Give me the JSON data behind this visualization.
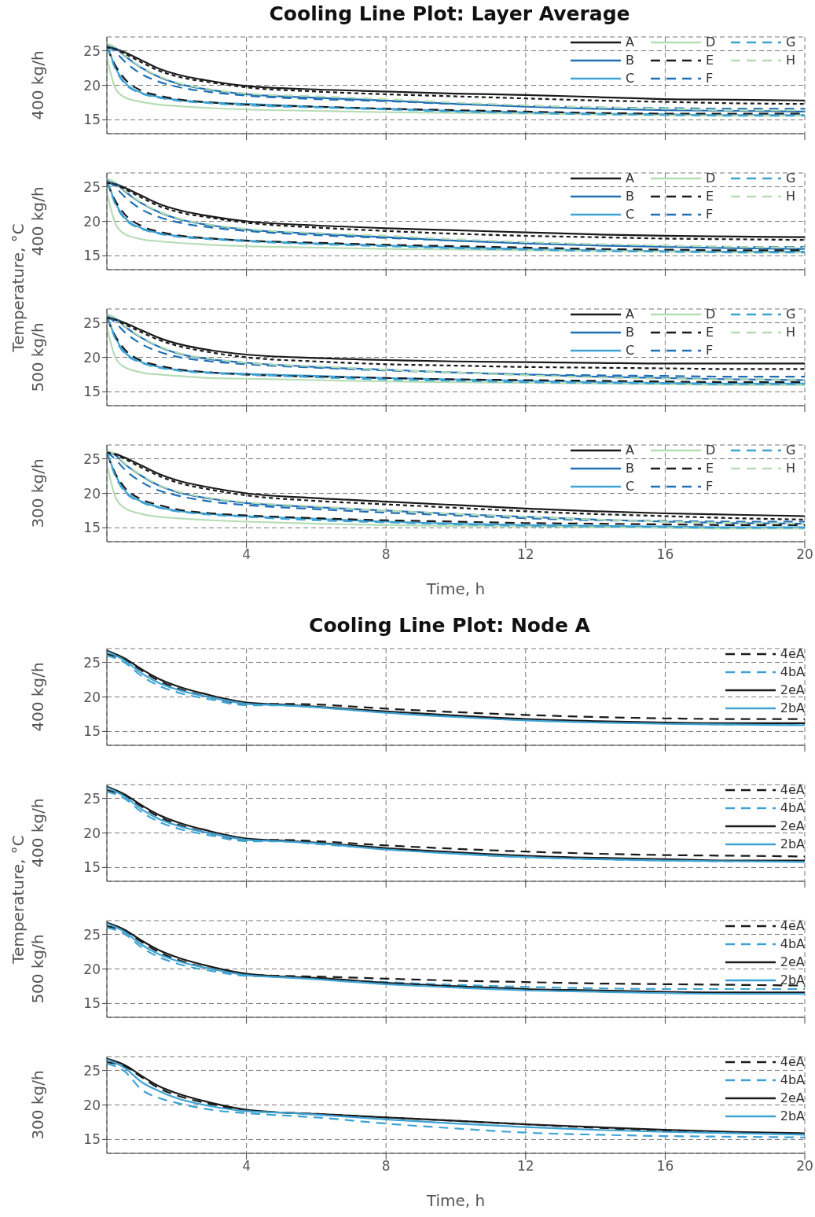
{
  "chart_data": [
    {
      "type": "line",
      "title": "Cooling Line Plot: Layer Average",
      "ylabel": "400 kg/h",
      "annotations": [
        "Temperature, °C"
      ],
      "legend": "top right",
      "grid": true,
      "tick_labels": "y",
      "xlim": [
        0,
        20
      ],
      "xticks": [
        4,
        8,
        12,
        16,
        20
      ],
      "ylim": [
        13,
        27
      ],
      "yticks": [
        15,
        20,
        25
      ],
      "x": [
        0,
        0.25,
        0.5,
        1,
        1.5,
        2,
        3,
        4,
        6,
        8,
        10,
        12,
        14,
        16,
        18,
        20
      ],
      "series": [
        {
          "name": "A",
          "color": "#1a1a1a",
          "line_style": "solid",
          "values": [
            25.5,
            25.3,
            24.8,
            23.6,
            22.4,
            21.6,
            20.6,
            19.9,
            19.4,
            19.1,
            18.8,
            18.6,
            18.3,
            18.0,
            17.9,
            17.8
          ]
        },
        {
          "name": "B",
          "color": "#1f6fb4",
          "line_style": "solid",
          "values": [
            26.0,
            25.4,
            24.3,
            22.5,
            21.2,
            20.3,
            19.3,
            18.7,
            18.2,
            17.8,
            17.3,
            16.9,
            16.6,
            16.4,
            16.3,
            16.2
          ]
        },
        {
          "name": "C",
          "color": "#3ea3d3",
          "line_style": "solid",
          "values": [
            26.0,
            22.5,
            20.5,
            18.9,
            18.3,
            17.9,
            17.5,
            17.3,
            16.9,
            16.6,
            16.3,
            16.1,
            15.9,
            15.8,
            15.7,
            15.7
          ]
        },
        {
          "name": "D",
          "color": "#b6dcb6",
          "line_style": "solid",
          "values": [
            24.0,
            19.5,
            18.3,
            17.6,
            17.2,
            17.0,
            16.7,
            16.5,
            16.3,
            16.1,
            16.0,
            15.9,
            15.8,
            15.7,
            15.6,
            15.6
          ]
        },
        {
          "name": "E",
          "color": "#1a1a1a",
          "line_style": "dashed",
          "values": [
            25.5,
            22.8,
            21.0,
            19.2,
            18.5,
            18.0,
            17.5,
            17.2,
            16.9,
            16.6,
            16.4,
            16.2,
            16.0,
            15.9,
            15.9,
            15.9
          ]
        },
        {
          "name": "F",
          "color": "#1f6fb4",
          "line_style": "dashed",
          "values": [
            25.8,
            24.8,
            23.5,
            21.6,
            20.5,
            19.8,
            19.0,
            18.5,
            18.0,
            17.7,
            17.3,
            17.0,
            16.8,
            16.7,
            16.6,
            16.6
          ]
        },
        {
          "name": "G",
          "color": "#3ea3d3",
          "line_style": "dashed",
          "values": [
            25.8,
            22.3,
            20.3,
            18.8,
            18.2,
            17.8,
            17.4,
            17.1,
            16.8,
            16.5,
            16.2,
            16.0,
            15.8,
            15.7,
            15.6,
            15.6
          ]
        },
        {
          "name": "H",
          "color": "#b6dcb6",
          "line_style": "dashed",
          "values": [
            26.0,
            25.5,
            24.4,
            22.6,
            21.3,
            20.4,
            19.4,
            18.8,
            18.4,
            18.0,
            17.5,
            17.1,
            16.8,
            16.6,
            16.4,
            16.4
          ]
        },
        {
          "color": "#1a1a1a",
          "line_style": "dotted",
          "values": [
            25.5,
            25.2,
            24.6,
            23.3,
            22.1,
            21.3,
            20.4,
            19.7,
            19.1,
            18.7,
            18.4,
            18.1,
            17.8,
            17.6,
            17.4,
            17.3
          ]
        }
      ]
    },
    {
      "type": "line",
      "ylabel": "400 kg/h",
      "legend": "top right",
      "grid": true,
      "tick_labels": "y",
      "xlim": [
        0,
        20
      ],
      "xticks": [
        4,
        8,
        12,
        16,
        20
      ],
      "ylim": [
        13,
        27
      ],
      "yticks": [
        15,
        20,
        25
      ],
      "x": [
        0,
        0.25,
        0.5,
        1,
        1.5,
        2,
        3,
        4,
        6,
        8,
        10,
        12,
        14,
        16,
        18,
        20
      ],
      "series": [
        {
          "name": "A",
          "color": "#1a1a1a",
          "line_style": "solid",
          "values": [
            25.6,
            25.4,
            24.9,
            23.7,
            22.5,
            21.7,
            20.7,
            20.0,
            19.4,
            19.0,
            18.7,
            18.4,
            18.1,
            17.9,
            17.8,
            17.7
          ]
        },
        {
          "name": "B",
          "color": "#1f6fb4",
          "line_style": "solid",
          "values": [
            26.1,
            25.5,
            24.4,
            22.6,
            21.3,
            20.4,
            19.4,
            18.8,
            18.2,
            17.7,
            17.2,
            16.8,
            16.5,
            16.3,
            16.1,
            16.0
          ]
        },
        {
          "name": "C",
          "color": "#3ea3d3",
          "line_style": "solid",
          "values": [
            26.1,
            22.6,
            20.6,
            19.0,
            18.3,
            17.9,
            17.5,
            17.2,
            16.8,
            16.5,
            16.2,
            16.0,
            15.8,
            15.7,
            15.6,
            15.6
          ]
        },
        {
          "name": "D",
          "color": "#b6dcb6",
          "line_style": "solid",
          "values": [
            24.2,
            19.6,
            18.2,
            17.4,
            17.1,
            16.9,
            16.6,
            16.4,
            16.2,
            16.0,
            15.9,
            15.8,
            15.7,
            15.6,
            15.5,
            15.5
          ]
        },
        {
          "name": "E",
          "color": "#1a1a1a",
          "line_style": "dashed",
          "values": [
            25.6,
            22.9,
            21.1,
            19.3,
            18.5,
            18.0,
            17.5,
            17.2,
            16.9,
            16.6,
            16.4,
            16.2,
            16.0,
            15.9,
            15.8,
            15.8
          ]
        },
        {
          "name": "F",
          "color": "#1f6fb4",
          "line_style": "dashed",
          "values": [
            25.9,
            24.9,
            23.6,
            21.7,
            20.6,
            19.9,
            19.1,
            18.6,
            18.0,
            17.6,
            17.2,
            16.9,
            16.6,
            16.4,
            16.3,
            16.3
          ]
        },
        {
          "name": "G",
          "color": "#3ea3d3",
          "line_style": "dashed",
          "values": [
            25.9,
            22.4,
            20.4,
            18.9,
            18.2,
            17.8,
            17.4,
            17.1,
            16.7,
            16.4,
            16.1,
            15.9,
            15.7,
            15.6,
            15.5,
            15.5
          ]
        },
        {
          "name": "H",
          "color": "#b6dcb6",
          "line_style": "dashed",
          "values": [
            26.1,
            25.6,
            24.5,
            22.7,
            21.4,
            20.5,
            19.5,
            18.9,
            18.3,
            17.9,
            17.4,
            17.0,
            16.7,
            16.5,
            16.3,
            16.2
          ]
        },
        {
          "color": "#1a1a1a",
          "line_style": "dotted",
          "values": [
            25.6,
            25.3,
            24.7,
            23.4,
            22.2,
            21.4,
            20.5,
            19.8,
            19.1,
            18.6,
            18.2,
            17.9,
            17.7,
            17.5,
            17.4,
            17.3
          ]
        }
      ]
    },
    {
      "type": "line",
      "ylabel": "500 kg/h",
      "legend": "top right",
      "grid": true,
      "tick_labels": "y",
      "xlim": [
        0,
        20
      ],
      "xticks": [
        4,
        8,
        12,
        16,
        20
      ],
      "ylim": [
        13,
        27
      ],
      "yticks": [
        15,
        20,
        25
      ],
      "x": [
        0,
        0.25,
        0.5,
        1,
        1.5,
        2,
        3,
        4,
        6,
        8,
        10,
        12,
        14,
        16,
        18,
        20
      ],
      "series": [
        {
          "name": "A",
          "color": "#1a1a1a",
          "line_style": "solid",
          "values": [
            25.7,
            25.5,
            25.0,
            23.9,
            22.8,
            22.0,
            21.0,
            20.4,
            19.9,
            19.6,
            19.4,
            19.3,
            19.2,
            19.1,
            19.1,
            19.1
          ]
        },
        {
          "name": "B",
          "color": "#1f6fb4",
          "line_style": "solid",
          "values": [
            26.2,
            25.6,
            24.5,
            22.8,
            21.5,
            20.6,
            19.7,
            19.2,
            18.6,
            18.2,
            17.8,
            17.5,
            17.2,
            17.0,
            16.8,
            16.7
          ]
        },
        {
          "name": "C",
          "color": "#3ea3d3",
          "line_style": "solid",
          "values": [
            26.1,
            22.8,
            20.8,
            19.3,
            18.6,
            18.2,
            17.8,
            17.6,
            17.3,
            17.0,
            16.8,
            16.6,
            16.4,
            16.3,
            16.2,
            16.2
          ]
        },
        {
          "name": "D",
          "color": "#b6dcb6",
          "line_style": "solid",
          "values": [
            24.4,
            19.9,
            18.6,
            17.8,
            17.5,
            17.3,
            17.0,
            16.9,
            16.7,
            16.5,
            16.4,
            16.3,
            16.2,
            16.1,
            16.0,
            16.0
          ]
        },
        {
          "name": "E",
          "color": "#1a1a1a",
          "line_style": "dashed",
          "values": [
            25.7,
            23.0,
            21.2,
            19.5,
            18.8,
            18.3,
            17.8,
            17.5,
            17.2,
            17.0,
            16.8,
            16.7,
            16.6,
            16.5,
            16.4,
            16.4
          ]
        },
        {
          "name": "F",
          "color": "#1f6fb4",
          "line_style": "dashed",
          "values": [
            26.0,
            25.0,
            23.7,
            21.9,
            20.8,
            20.1,
            19.4,
            19.0,
            18.5,
            18.1,
            17.8,
            17.5,
            17.4,
            17.3,
            17.2,
            17.2
          ]
        },
        {
          "name": "G",
          "color": "#3ea3d3",
          "line_style": "dashed",
          "values": [
            26.0,
            22.6,
            20.6,
            19.2,
            18.5,
            18.1,
            17.7,
            17.5,
            17.1,
            16.8,
            16.6,
            16.4,
            16.3,
            16.2,
            16.1,
            16.1
          ]
        },
        {
          "name": "H",
          "color": "#b6dcb6",
          "line_style": "dashed",
          "values": [
            26.2,
            25.7,
            24.6,
            22.9,
            21.6,
            20.7,
            19.8,
            19.2,
            18.7,
            18.2,
            17.8,
            17.4,
            17.1,
            16.9,
            16.8,
            16.8
          ]
        },
        {
          "color": "#1a1a1a",
          "line_style": "dotted",
          "values": [
            25.7,
            25.4,
            24.8,
            23.6,
            22.5,
            21.7,
            20.7,
            20.0,
            19.4,
            19.0,
            18.8,
            18.6,
            18.5,
            18.4,
            18.3,
            18.3
          ]
        }
      ]
    },
    {
      "type": "line",
      "ylabel": "300 kg/h",
      "xlabel": "Time, h",
      "legend": "top right",
      "grid": true,
      "xlim": [
        0,
        20
      ],
      "xticks": [
        4,
        8,
        12,
        16,
        20
      ],
      "ylim": [
        13,
        27
      ],
      "yticks": [
        15,
        20,
        25
      ],
      "x": [
        0,
        0.25,
        0.5,
        1,
        1.5,
        2,
        3,
        4,
        6,
        8,
        10,
        12,
        14,
        16,
        18,
        20
      ],
      "series": [
        {
          "name": "A",
          "color": "#1a1a1a",
          "line_style": "solid",
          "values": [
            25.9,
            25.7,
            25.2,
            24.0,
            22.8,
            21.9,
            20.8,
            20.0,
            19.3,
            18.8,
            18.3,
            17.8,
            17.4,
            17.1,
            16.9,
            16.7
          ]
        },
        {
          "name": "B",
          "color": "#1f6fb4",
          "line_style": "solid",
          "values": [
            26.2,
            25.5,
            24.3,
            22.5,
            21.1,
            20.2,
            19.2,
            18.6,
            18.0,
            17.5,
            17.0,
            16.6,
            16.2,
            15.9,
            15.7,
            15.6
          ]
        },
        {
          "name": "C",
          "color": "#3ea3d3",
          "line_style": "solid",
          "values": [
            26.1,
            22.6,
            20.5,
            18.8,
            18.0,
            17.5,
            17.0,
            16.7,
            16.3,
            15.9,
            15.6,
            15.4,
            15.3,
            15.2,
            15.1,
            15.1
          ]
        },
        {
          "name": "D",
          "color": "#b6dcb6",
          "line_style": "solid",
          "values": [
            24.2,
            19.4,
            17.9,
            17.0,
            16.6,
            16.4,
            16.1,
            15.9,
            15.6,
            15.4,
            15.3,
            15.2,
            15.1,
            15.0,
            14.9,
            14.9
          ]
        },
        {
          "name": "E",
          "color": "#1a1a1a",
          "line_style": "dashed",
          "values": [
            25.7,
            22.8,
            20.9,
            19.1,
            18.3,
            17.7,
            17.1,
            16.8,
            16.4,
            16.1,
            15.9,
            15.7,
            15.6,
            15.5,
            15.4,
            15.4
          ]
        },
        {
          "name": "F",
          "color": "#1f6fb4",
          "line_style": "dashed",
          "values": [
            26.0,
            24.9,
            23.5,
            21.6,
            20.4,
            19.7,
            18.8,
            18.3,
            17.7,
            17.2,
            16.8,
            16.4,
            16.1,
            16.0,
            15.9,
            15.9
          ]
        },
        {
          "name": "G",
          "color": "#3ea3d3",
          "line_style": "dashed",
          "values": [
            26.0,
            22.4,
            20.3,
            18.7,
            17.9,
            17.4,
            16.9,
            16.6,
            16.1,
            15.8,
            15.5,
            15.3,
            15.2,
            15.1,
            15.0,
            15.0
          ]
        },
        {
          "name": "H",
          "color": "#b6dcb6",
          "line_style": "dashed",
          "values": [
            26.2,
            25.6,
            24.4,
            22.6,
            21.2,
            20.3,
            19.3,
            18.7,
            18.1,
            17.5,
            17.0,
            16.6,
            16.2,
            15.9,
            15.7,
            15.6
          ]
        },
        {
          "color": "#1a1a1a",
          "line_style": "dotted",
          "values": [
            25.9,
            25.6,
            25.0,
            23.7,
            22.5,
            21.6,
            20.5,
            19.7,
            18.9,
            18.4,
            17.9,
            17.4,
            17.0,
            16.7,
            16.4,
            16.2
          ]
        }
      ]
    },
    {
      "type": "line",
      "title": "Cooling Line Plot: Node A",
      "ylabel": "400 kg/h",
      "annotations": [
        "Temperature, °C"
      ],
      "legend": "top right",
      "grid": true,
      "tick_labels": "y",
      "xlim": [
        0,
        20
      ],
      "xticks": [
        4,
        8,
        12,
        16,
        20
      ],
      "ylim": [
        13,
        27
      ],
      "yticks": [
        15,
        20,
        25
      ],
      "x": [
        0,
        0.5,
        1,
        1.5,
        2,
        3,
        4,
        5,
        6,
        8,
        10,
        12,
        14,
        16,
        18,
        20
      ],
      "series": [
        {
          "name": "4eA",
          "color": "#1a1a1a",
          "line_style": "dashed",
          "values": [
            26.2,
            25.4,
            23.8,
            22.3,
            21.3,
            19.9,
            19.0,
            19.0,
            18.9,
            18.3,
            17.8,
            17.4,
            17.1,
            16.9,
            16.8,
            16.8
          ]
        },
        {
          "name": "4bA",
          "color": "#3ea3d3",
          "line_style": "dashed",
          "values": [
            26.0,
            25.0,
            23.0,
            21.6,
            20.7,
            19.6,
            18.8,
            18.8,
            18.5,
            17.8,
            17.2,
            16.7,
            16.4,
            16.2,
            16.0,
            16.0
          ]
        },
        {
          "name": "2eA",
          "color": "#1a1a1a",
          "line_style": "solid",
          "values": [
            26.7,
            25.6,
            24.0,
            22.6,
            21.6,
            20.2,
            19.2,
            18.9,
            18.6,
            17.9,
            17.3,
            16.8,
            16.5,
            16.3,
            16.2,
            16.2
          ]
        },
        {
          "name": "2bA",
          "color": "#3ea3d3",
          "line_style": "solid",
          "values": [
            26.6,
            25.3,
            23.4,
            22.0,
            21.1,
            19.9,
            19.0,
            18.8,
            18.5,
            17.7,
            17.1,
            16.6,
            16.3,
            16.1,
            16.0,
            15.9
          ]
        }
      ]
    },
    {
      "type": "line",
      "ylabel": "400 kg/h",
      "legend": "top right",
      "grid": true,
      "tick_labels": "y",
      "xlim": [
        0,
        20
      ],
      "xticks": [
        4,
        8,
        12,
        16,
        20
      ],
      "ylim": [
        13,
        27
      ],
      "yticks": [
        15,
        20,
        25
      ],
      "x": [
        0,
        0.5,
        1,
        1.5,
        2,
        3,
        4,
        5,
        6,
        8,
        10,
        12,
        14,
        16,
        18,
        20
      ],
      "series": [
        {
          "name": "4eA",
          "color": "#1a1a1a",
          "line_style": "dashed",
          "values": [
            26.2,
            25.4,
            23.8,
            22.3,
            21.3,
            19.9,
            19.0,
            19.0,
            18.8,
            18.2,
            17.7,
            17.3,
            17.0,
            16.8,
            16.7,
            16.6
          ]
        },
        {
          "name": "4bA",
          "color": "#3ea3d3",
          "line_style": "dashed",
          "values": [
            26.0,
            25.0,
            23.0,
            21.6,
            20.7,
            19.6,
            18.8,
            18.8,
            18.4,
            17.7,
            17.0,
            16.5,
            16.2,
            16.0,
            15.9,
            15.9
          ]
        },
        {
          "name": "2eA",
          "color": "#1a1a1a",
          "line_style": "solid",
          "values": [
            26.7,
            25.6,
            24.0,
            22.6,
            21.6,
            20.2,
            19.2,
            18.9,
            18.6,
            17.8,
            17.2,
            16.7,
            16.4,
            16.2,
            16.0,
            16.0
          ]
        },
        {
          "name": "2bA",
          "color": "#3ea3d3",
          "line_style": "solid",
          "values": [
            26.6,
            25.3,
            23.4,
            22.0,
            21.1,
            19.9,
            19.0,
            18.8,
            18.5,
            17.6,
            17.0,
            16.5,
            16.2,
            16.0,
            15.9,
            15.8
          ]
        }
      ]
    },
    {
      "type": "line",
      "ylabel": "500 kg/h",
      "legend": "top right",
      "grid": true,
      "tick_labels": "y",
      "xlim": [
        0,
        20
      ],
      "xticks": [
        4,
        8,
        12,
        16,
        20
      ],
      "ylim": [
        13,
        27
      ],
      "yticks": [
        15,
        20,
        25
      ],
      "x": [
        0,
        0.5,
        1,
        1.5,
        2,
        3,
        4,
        5,
        6,
        8,
        10,
        12,
        14,
        16,
        18,
        20
      ],
      "series": [
        {
          "name": "4eA",
          "color": "#1a1a1a",
          "line_style": "dashed",
          "values": [
            26.2,
            25.5,
            23.9,
            22.4,
            21.4,
            20.0,
            19.2,
            19.0,
            18.9,
            18.6,
            18.3,
            18.1,
            17.9,
            17.8,
            17.7,
            17.6
          ]
        },
        {
          "name": "4bA",
          "color": "#3ea3d3",
          "line_style": "dashed",
          "values": [
            26.0,
            25.1,
            23.1,
            21.7,
            20.8,
            19.7,
            19.0,
            18.9,
            18.6,
            18.1,
            17.7,
            17.4,
            17.2,
            17.1,
            17.1,
            17.1
          ]
        },
        {
          "name": "2eA",
          "color": "#1a1a1a",
          "line_style": "solid",
          "values": [
            26.7,
            25.7,
            24.1,
            22.7,
            21.7,
            20.3,
            19.3,
            18.9,
            18.7,
            18.0,
            17.5,
            17.1,
            16.9,
            16.7,
            16.6,
            16.6
          ]
        },
        {
          "name": "2bA",
          "color": "#3ea3d3",
          "line_style": "solid",
          "values": [
            26.6,
            25.4,
            23.5,
            22.1,
            21.2,
            20.0,
            19.1,
            18.8,
            18.5,
            17.8,
            17.3,
            16.9,
            16.7,
            16.5,
            16.4,
            16.4
          ]
        }
      ]
    },
    {
      "type": "line",
      "ylabel": "300 kg/h",
      "xlabel": "Time, h",
      "legend": "top right",
      "grid": true,
      "xlim": [
        0,
        20
      ],
      "xticks": [
        4,
        8,
        12,
        16,
        20
      ],
      "ylim": [
        13,
        27
      ],
      "yticks": [
        15,
        20,
        25
      ],
      "x": [
        0,
        0.5,
        1,
        1.5,
        2,
        3,
        4,
        5,
        6,
        8,
        10,
        12,
        14,
        16,
        18,
        20
      ],
      "series": [
        {
          "name": "4eA",
          "color": "#1a1a1a",
          "line_style": "dashed",
          "values": [
            26.2,
            25.6,
            24.0,
            22.4,
            21.4,
            20.1,
            19.2,
            18.9,
            18.7,
            18.2,
            17.7,
            17.2,
            16.7,
            16.3,
            16.0,
            15.8
          ]
        },
        {
          "name": "4bA",
          "color": "#3ea3d3",
          "line_style": "dashed",
          "values": [
            26.0,
            24.9,
            22.2,
            21.0,
            20.3,
            19.3,
            18.8,
            18.5,
            18.2,
            17.3,
            16.6,
            16.0,
            15.7,
            15.5,
            15.4,
            15.3
          ]
        },
        {
          "name": "2eA",
          "color": "#1a1a1a",
          "line_style": "solid",
          "values": [
            26.7,
            25.8,
            24.2,
            22.7,
            21.7,
            20.3,
            19.3,
            18.9,
            18.7,
            18.2,
            17.7,
            17.2,
            16.8,
            16.4,
            16.1,
            15.9
          ]
        },
        {
          "name": "2bA",
          "color": "#3ea3d3",
          "line_style": "solid",
          "values": [
            26.6,
            25.4,
            23.3,
            22.0,
            21.0,
            19.8,
            19.1,
            18.9,
            18.6,
            17.9,
            17.3,
            16.8,
            16.4,
            16.1,
            15.9,
            15.7
          ]
        }
      ]
    }
  ]
}
